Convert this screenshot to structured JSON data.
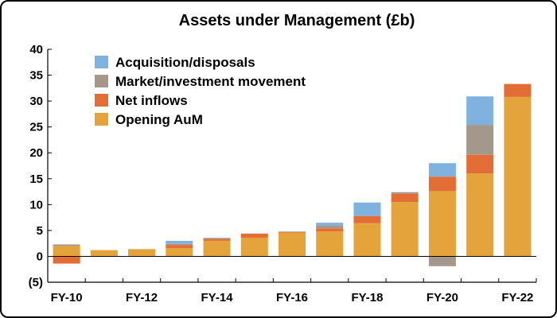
{
  "chart_data": {
    "type": "bar",
    "stacked": true,
    "title": "Assets under Management (£b)",
    "xlabel": "",
    "ylabel": "",
    "ylim": [
      -5,
      40
    ],
    "y_ticks": [
      -5,
      0,
      5,
      10,
      15,
      20,
      25,
      30,
      35,
      40
    ],
    "y_tick_labels": [
      "(5)",
      "0",
      "5",
      "10",
      "15",
      "20",
      "25",
      "30",
      "35",
      "40"
    ],
    "categories": [
      "FY-10",
      "FY-11",
      "FY-12",
      "FY-13",
      "FY-14",
      "FY-15",
      "FY-16",
      "FY-17",
      "FY-18",
      "FY-19",
      "FY-20",
      "FY-21",
      "FY-22"
    ],
    "x_tick_labels_shown": [
      "FY-10",
      "FY-12",
      "FY-14",
      "FY-16",
      "FY-18",
      "FY-20",
      "FY-22"
    ],
    "grid": false,
    "legend_position": "top-left",
    "series": [
      {
        "name": "Opening AuM",
        "color": "#E5A33C",
        "values": [
          2.0,
          1.2,
          1.4,
          1.6,
          3.0,
          3.6,
          4.6,
          4.8,
          6.4,
          10.5,
          12.6,
          16.0,
          30.8
        ]
      },
      {
        "name": "Net inflows",
        "color": "#E26E35",
        "values": [
          -1.4,
          0.0,
          0.0,
          0.6,
          0.4,
          0.8,
          0.1,
          0.6,
          1.4,
          1.6,
          2.8,
          3.6,
          2.5
        ]
      },
      {
        "name": "Market/investment movement",
        "color": "#A39889",
        "values": [
          0.3,
          0.0,
          0.0,
          0.2,
          0.1,
          0.0,
          0.1,
          0.6,
          0.0,
          0.3,
          -1.9,
          5.8,
          0.0
        ]
      },
      {
        "name": "Acquisition/disposals",
        "color": "#7FB2DF",
        "values": [
          0.0,
          0.0,
          0.0,
          0.6,
          0.1,
          0.0,
          0.0,
          0.5,
          2.6,
          0.0,
          2.6,
          5.5,
          0.0
        ]
      }
    ],
    "legend_order": [
      "Acquisition/disposals",
      "Market/investment movement",
      "Net inflows",
      "Opening AuM"
    ]
  }
}
